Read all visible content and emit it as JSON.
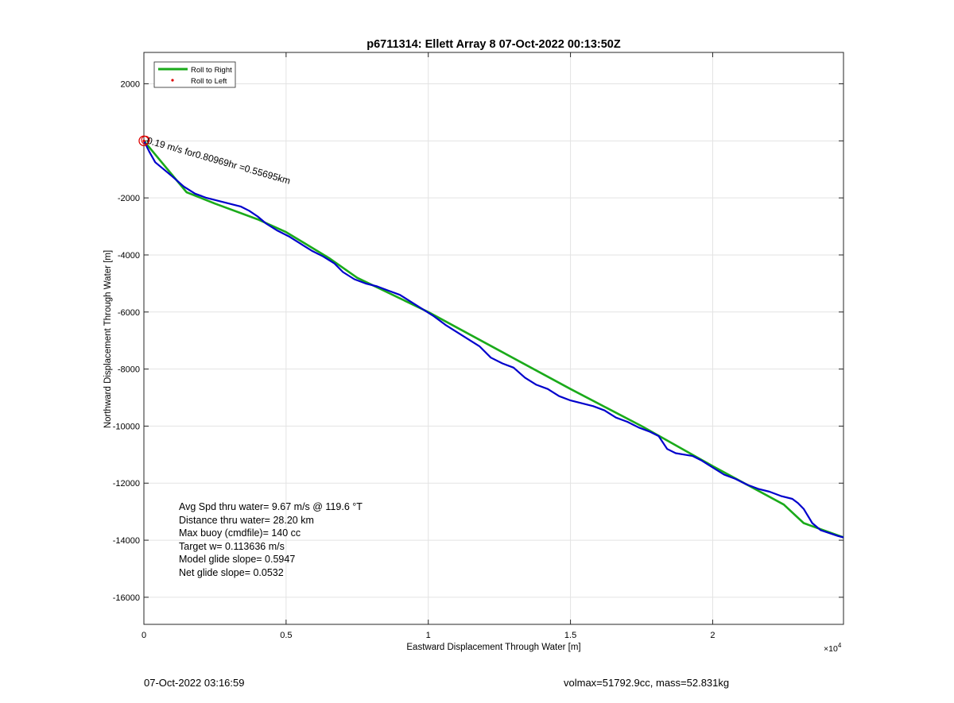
{
  "chart_data": {
    "type": "line",
    "title": "p6711314: Ellett Array 8 07-Oct-2022 00:13:50Z",
    "xlabel": "Eastward Displacement Through Water [m]",
    "ylabel": "Northward Displacement Through Water [m]",
    "x_exponent_label": "×10",
    "x_exponent_power": "4",
    "xlim": [
      0,
      24600
    ],
    "ylim": [
      -16950,
      3100
    ],
    "grid": true,
    "legend_position": "top-left",
    "xticks": [
      0,
      5000,
      10000,
      15000,
      20000
    ],
    "xtick_labels": [
      "0",
      "0.5",
      "1",
      "1.5",
      "2"
    ],
    "yticks": [
      2000,
      0,
      -2000,
      -4000,
      -6000,
      -8000,
      -10000,
      -12000,
      -14000,
      -16000
    ],
    "ytick_labels": [
      "2000",
      "",
      "-2000",
      "-4000",
      "-6000",
      "-8000",
      "-10000",
      "-12000",
      "-14000",
      "-16000"
    ],
    "series": [
      {
        "name": "Roll to Right",
        "color": "#1aaa1a",
        "x": [
          0,
          1500,
          2500,
          4000,
          5000,
          6500,
          7500,
          10000,
          12500,
          15000,
          17500,
          20000,
          22500,
          23200,
          24600
        ],
        "y": [
          0,
          -1800,
          -2200,
          -2750,
          -3200,
          -4100,
          -4800,
          -6000,
          -7350,
          -8700,
          -10000,
          -11400,
          -12750,
          -13400,
          -13900
        ]
      },
      {
        "name": "",
        "color": "#0000cc",
        "x": [
          0,
          200,
          400,
          700,
          1000,
          1400,
          1800,
          2200,
          2600,
          3000,
          3400,
          3700,
          4000,
          4300,
          4700,
          5100,
          5500,
          5900,
          6300,
          6700,
          7000,
          7400,
          7800,
          8200,
          8600,
          9000,
          9400,
          9800,
          10200,
          10600,
          11000,
          11400,
          11800,
          12200,
          12600,
          13000,
          13400,
          13800,
          14200,
          14600,
          15000,
          15400,
          15800,
          16200,
          16600,
          17000,
          17400,
          17800,
          18100,
          18400,
          18700,
          19000,
          19300,
          19600,
          20000,
          20400,
          20800,
          21200,
          21600,
          22000,
          22400,
          22800,
          23000,
          23200,
          23500,
          23800,
          24100,
          24400,
          24600
        ],
        "y": [
          0,
          -400,
          -750,
          -1000,
          -1250,
          -1600,
          -1850,
          -2000,
          -2100,
          -2200,
          -2300,
          -2450,
          -2650,
          -2900,
          -3150,
          -3350,
          -3600,
          -3850,
          -4050,
          -4300,
          -4600,
          -4850,
          -5000,
          -5100,
          -5250,
          -5400,
          -5650,
          -5900,
          -6150,
          -6450,
          -6700,
          -6950,
          -7200,
          -7600,
          -7800,
          -7950,
          -8300,
          -8550,
          -8700,
          -8950,
          -9100,
          -9200,
          -9300,
          -9450,
          -9700,
          -9850,
          -10050,
          -10200,
          -10350,
          -10800,
          -10950,
          -11000,
          -11050,
          -11200,
          -11450,
          -11700,
          -11850,
          -12050,
          -12200,
          -12300,
          -12450,
          -12550,
          -12700,
          -12900,
          -13400,
          -13650,
          -13750,
          -13850,
          -13900
        ]
      },
      {
        "name": "Roll to Left",
        "color": "#dd0000",
        "x": [
          0
        ],
        "y": [
          0
        ]
      }
    ],
    "annotations": [
      {
        "text": "0.19 m/s for0.80969hr =0.55695km",
        "x": 0,
        "y": 0,
        "angle_deg": 16
      }
    ],
    "text_box": [
      "Avg Spd thru water=  9.67 m/s @ 119.6 °T",
      "Distance thru water= 28.20 km",
      "Max buoy (cmdfile)= 140 cc",
      "Target w= 0.113636 m/s",
      "Model glide slope= 0.5947",
      "Net glide slope= 0.0532"
    ]
  },
  "footer": {
    "timestamp": "07-Oct-2022 03:16:59",
    "summary": "volmax=51792.9cc, mass=52.831kg"
  }
}
